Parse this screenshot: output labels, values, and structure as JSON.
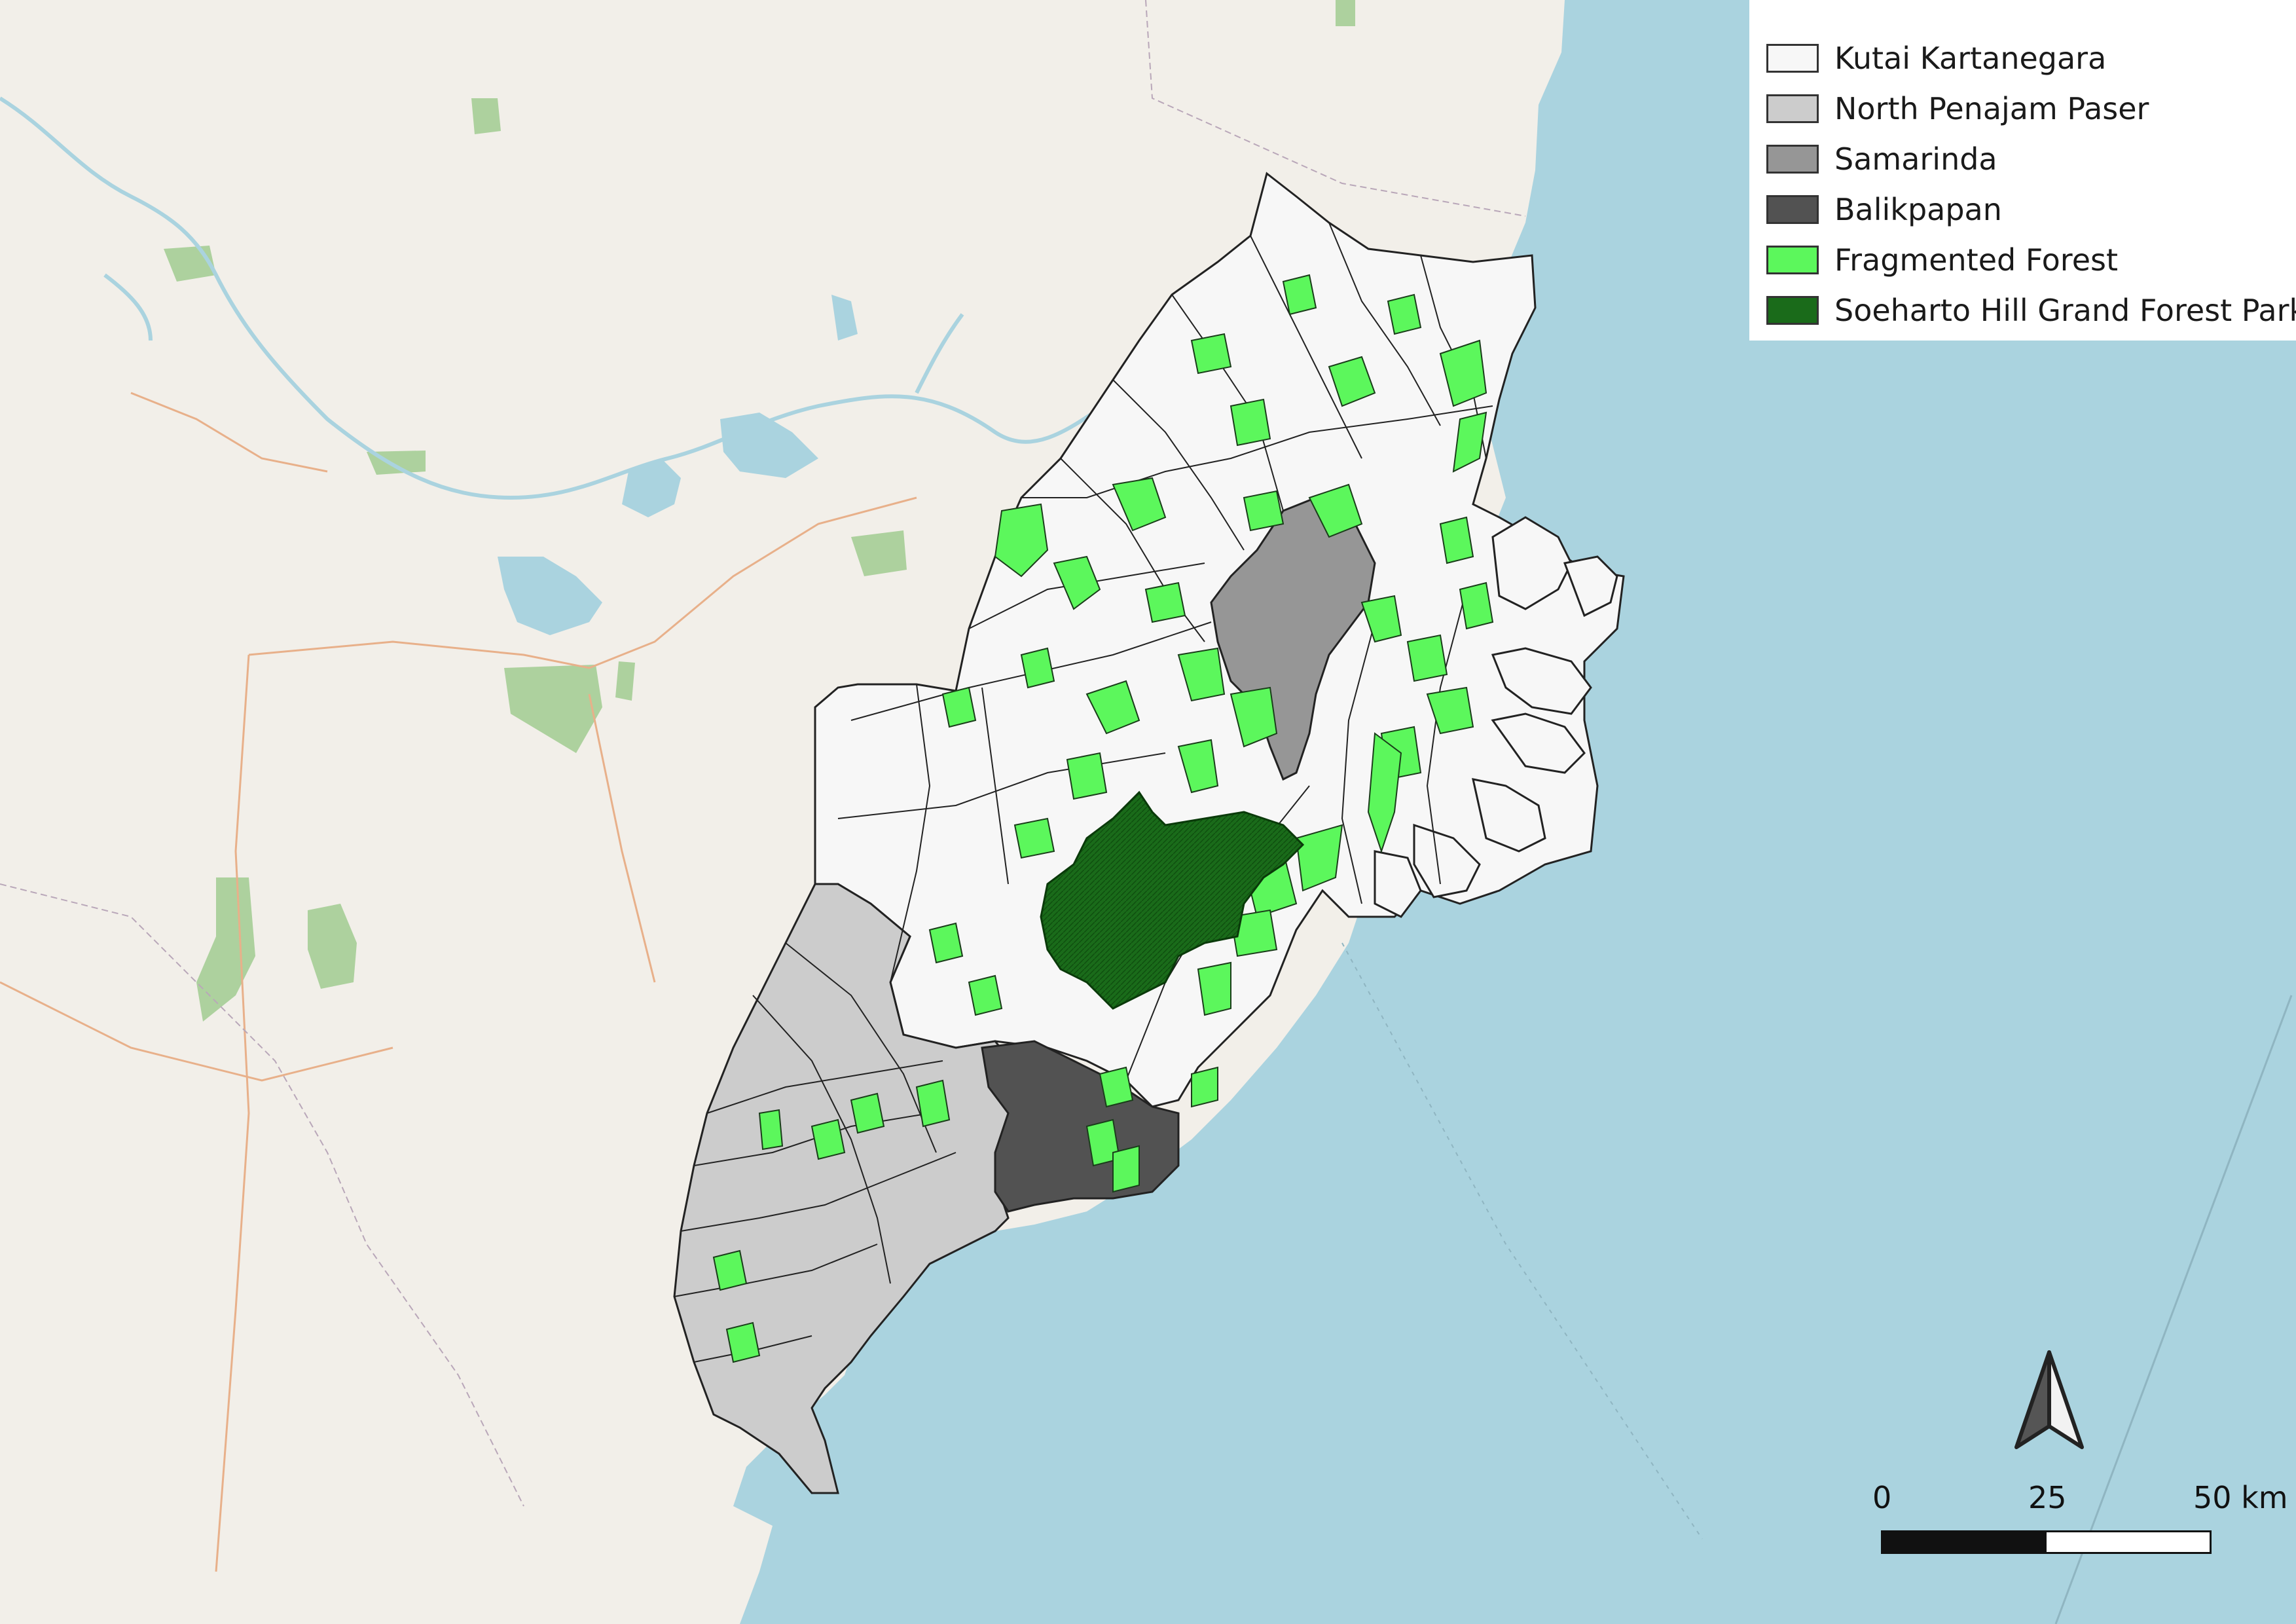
{
  "legend": {
    "items": [
      {
        "label": "Kutai Kartanegara",
        "color": "#f7f7f7"
      },
      {
        "label": "North Penajam Paser",
        "color": "#cccccc"
      },
      {
        "label": "Samarinda",
        "color": "#969696"
      },
      {
        "label": "Balikpapan",
        "color": "#525252"
      },
      {
        "label": "Fragmented Forest",
        "color": "#5cf75c"
      },
      {
        "label": "Soeharto Hill Grand Forest Park",
        "color": "#1a6b1a"
      }
    ]
  },
  "scalebar": {
    "label_0": "0",
    "label_mid": "25",
    "label_end": "50 km"
  },
  "basemap": {
    "land_color": "#f2efe9",
    "sea_color": "#aad3df",
    "forest_color": "#add19e",
    "lake_color": "#aad3df",
    "river_color": "#aad3df",
    "road_color": "#e8b08a"
  },
  "icons": {
    "north_arrow": "north-arrow-icon"
  }
}
